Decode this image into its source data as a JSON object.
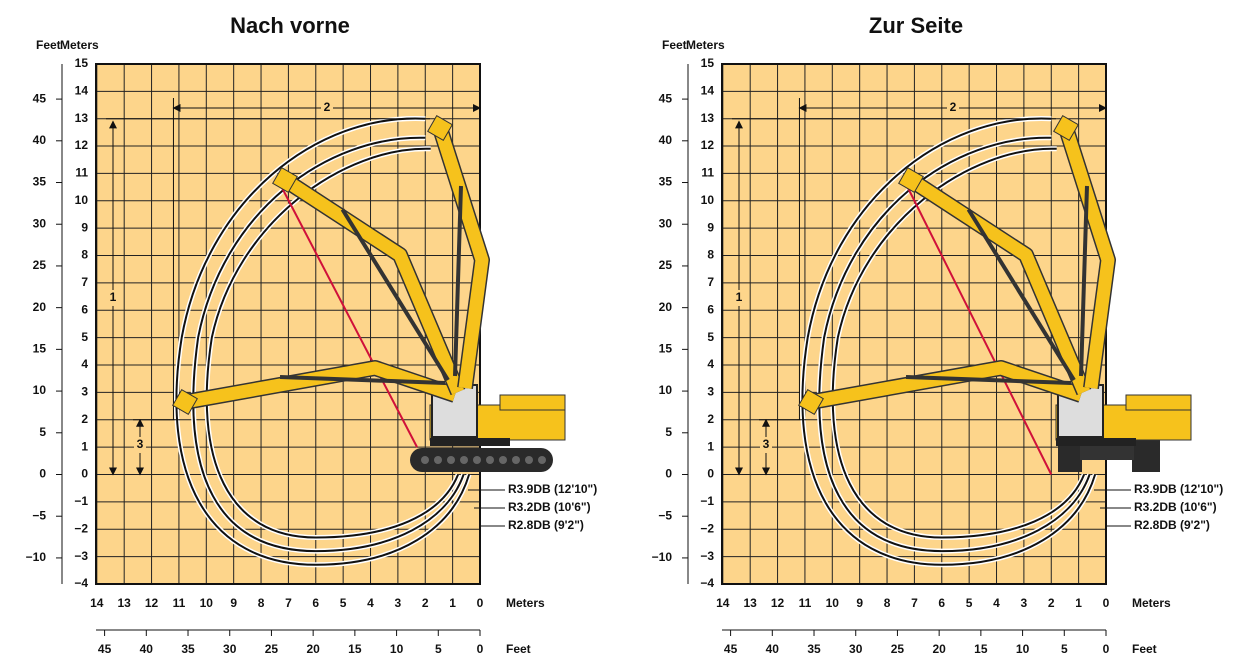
{
  "panels": [
    {
      "title": "Nach vorne",
      "feet_label": "Feet",
      "meters_label": "Meters",
      "y_meters": [
        "15",
        "14",
        "13",
        "12",
        "11",
        "10",
        "9",
        "8",
        "7",
        "6",
        "5",
        "4",
        "3",
        "2",
        "1",
        "0",
        "−1",
        "−2",
        "−3",
        "−4"
      ],
      "y_feet": [
        "45",
        "40",
        "35",
        "30",
        "25",
        "20",
        "15",
        "10",
        "5",
        "0",
        "−5",
        "−10"
      ],
      "x_meters": [
        "14",
        "13",
        "12",
        "11",
        "10",
        "9",
        "8",
        "7",
        "6",
        "5",
        "4",
        "3",
        "2",
        "1",
        "0"
      ],
      "x_meters_unit": "Meters",
      "x_feet": [
        "45",
        "40",
        "35",
        "30",
        "25",
        "20",
        "15",
        "10",
        "5",
        "0"
      ],
      "x_feet_unit": "Feet",
      "dimensions": [
        "1",
        "2",
        "3"
      ],
      "curves": [
        "R3.9DB (12'10\")",
        "R3.2DB (10'6\")",
        "R2.8DB (9'2\")"
      ]
    },
    {
      "title": "Zur Seite",
      "feet_label": "Feet",
      "meters_label": "Meters",
      "y_meters": [
        "15",
        "14",
        "13",
        "12",
        "11",
        "10",
        "9",
        "8",
        "7",
        "6",
        "5",
        "4",
        "3",
        "2",
        "1",
        "0",
        "−1",
        "−2",
        "−3",
        "−4"
      ],
      "y_feet": [
        "45",
        "40",
        "35",
        "30",
        "25",
        "20",
        "15",
        "10",
        "5",
        "0",
        "−5",
        "−10"
      ],
      "x_meters": [
        "14",
        "13",
        "12",
        "11",
        "10",
        "9",
        "8",
        "7",
        "6",
        "5",
        "4",
        "3",
        "2",
        "1",
        "0"
      ],
      "x_meters_unit": "Meters",
      "x_feet": [
        "45",
        "40",
        "35",
        "30",
        "25",
        "20",
        "15",
        "10",
        "5",
        "0"
      ],
      "x_feet_unit": "Feet",
      "dimensions": [
        "1",
        "2",
        "3"
      ],
      "curves": [
        "R3.9DB (12'10\")",
        "R3.2DB (10'6\")",
        "R2.8DB (9'2\")"
      ]
    }
  ]
}
